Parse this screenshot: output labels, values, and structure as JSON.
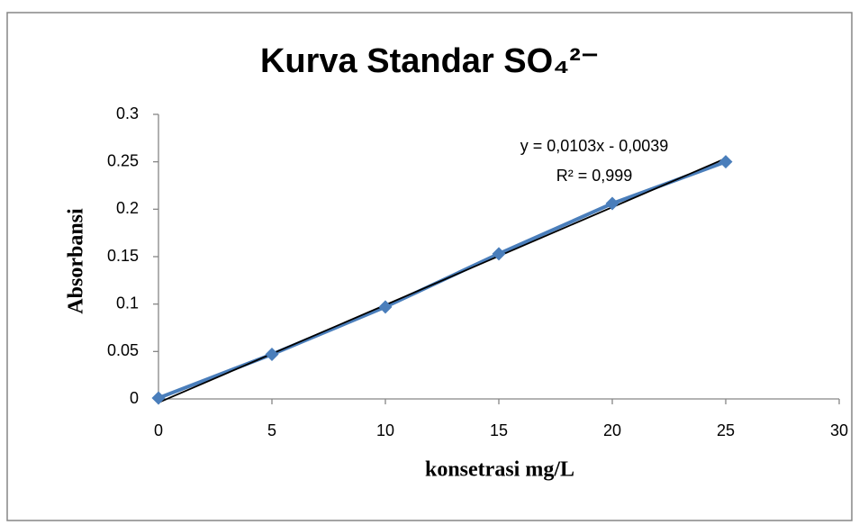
{
  "chart_data": {
    "type": "scatter",
    "title": "Kurva Standar SO₄²⁻",
    "x_label": "konsetrasi mg/L",
    "y_label": "Absorbansi",
    "annotations": [
      "y = 0,0103x - 0,0039",
      "R² = 0,999"
    ],
    "trendline": {
      "slope": 0.0103,
      "intercept": -0.0039,
      "color": "#000000"
    },
    "series": [
      {
        "name": "Absorbansi",
        "color": "#4a7ebb",
        "x": [
          0,
          5,
          10,
          15,
          20,
          25
        ],
        "values": [
          0.001,
          0.047,
          0.097,
          0.153,
          0.206,
          0.25
        ]
      }
    ],
    "xlim": [
      0,
      30
    ],
    "xticks": [
      0,
      5,
      10,
      15,
      20,
      25,
      30
    ],
    "ylim": [
      0,
      0.3
    ],
    "yticks": [
      0,
      0.05,
      0.1,
      0.15,
      0.2,
      0.25,
      0.3
    ],
    "grid": false
  }
}
